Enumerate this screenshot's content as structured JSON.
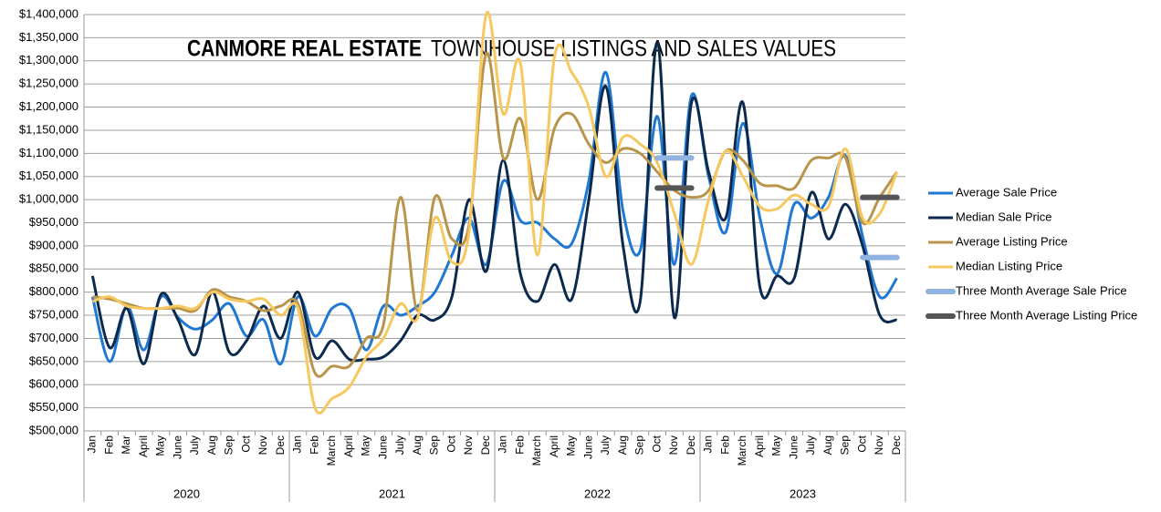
{
  "chart_data": {
    "type": "line",
    "title": "CANMORE REAL ESTATE",
    "subtitle": "TOWNHOUSE LISTINGS AND SALES VALUES",
    "categories": [
      "Jan",
      "Feb",
      "Mar",
      "April",
      "May",
      "June",
      "July",
      "Aug",
      "Sep",
      "Oct",
      "Nov",
      "Dec",
      "Jan",
      "Feb",
      "March",
      "April",
      "May",
      "June",
      "July",
      "Aug",
      "Sep",
      "Oct",
      "Nov",
      "Dec",
      "Jan",
      "Feb",
      "March",
      "April",
      "May",
      "June",
      "July",
      "Aug",
      "Sep",
      "Oct",
      "Nov",
      "Dec",
      "Jan",
      "Feb",
      "March",
      "April",
      "May",
      "June",
      "July",
      "Aug",
      "Sep",
      "Oct",
      "Nov",
      "Dec"
    ],
    "year_groups": [
      "2020",
      "2021",
      "2022",
      "2023"
    ],
    "ylim": [
      500000,
      1400000
    ],
    "yticks": [
      {
        "value": 500000,
        "label": "$500,000"
      },
      {
        "value": 550000,
        "label": "$550,000"
      },
      {
        "value": 600000,
        "label": "$600,000"
      },
      {
        "value": 650000,
        "label": "$650,000"
      },
      {
        "value": 700000,
        "label": "$700,000"
      },
      {
        "value": 750000,
        "label": "$750,000"
      },
      {
        "value": 800000,
        "label": "$800,000"
      },
      {
        "value": 850000,
        "label": "$850,000"
      },
      {
        "value": 900000,
        "label": "$900,000"
      },
      {
        "value": 950000,
        "label": "$950,000"
      },
      {
        "value": 1000000,
        "label": "$1,000,000"
      },
      {
        "value": 1050000,
        "label": "$1,050,000"
      },
      {
        "value": 1100000,
        "label": "$1,100,000"
      },
      {
        "value": 1150000,
        "label": "$1,150,000"
      },
      {
        "value": 1200000,
        "label": "$1,200,000"
      },
      {
        "value": 1250000,
        "label": "$1,250,000"
      },
      {
        "value": 1300000,
        "label": "$1,300,000"
      },
      {
        "value": 1350000,
        "label": "$1,350,000"
      },
      {
        "value": 1400000,
        "label": "$1,400,000"
      }
    ],
    "grid": true,
    "legend": "right",
    "series": [
      {
        "name": "Average Sale Price",
        "color": "#1f78d1",
        "smooth": true,
        "values": [
          790000,
          650000,
          770000,
          675000,
          790000,
          745000,
          720000,
          740000,
          775000,
          705000,
          740000,
          645000,
          790000,
          705000,
          765000,
          765000,
          675000,
          770000,
          750000,
          770000,
          800000,
          880000,
          960000,
          860000,
          1040000,
          955000,
          950000,
          915000,
          905000,
          1040000,
          1275000,
          975000,
          890000,
          1180000,
          860000,
          1225000,
          1050000,
          930000,
          1165000,
          960000,
          840000,
          990000,
          960000,
          1005000,
          1095000,
          920000,
          790000,
          830000
        ]
      },
      {
        "name": "Median Sale Price",
        "color": "#0c2a4d",
        "smooth": true,
        "values": [
          835000,
          680000,
          765000,
          645000,
          795000,
          740000,
          665000,
          800000,
          670000,
          695000,
          770000,
          700000,
          800000,
          660000,
          695000,
          655000,
          655000,
          660000,
          695000,
          750000,
          740000,
          790000,
          1000000,
          845000,
          1085000,
          840000,
          780000,
          860000,
          785000,
          1000000,
          1245000,
          900000,
          780000,
          1340000,
          745000,
          1210000,
          1060000,
          960000,
          1210000,
          810000,
          835000,
          830000,
          1015000,
          915000,
          990000,
          900000,
          750000,
          740000
        ]
      },
      {
        "name": "Average Listing Price",
        "color": "#b8954b",
        "smooth": true,
        "values": [
          790000,
          785000,
          775000,
          765000,
          765000,
          765000,
          760000,
          805000,
          790000,
          780000,
          760000,
          770000,
          775000,
          625000,
          640000,
          640000,
          700000,
          730000,
          1005000,
          760000,
          1005000,
          915000,
          945000,
          1315000,
          1090000,
          1175000,
          1000000,
          1155000,
          1185000,
          1120000,
          1080000,
          1110000,
          1100000,
          1060000,
          1020000,
          1005000,
          1020000,
          1105000,
          1085000,
          1035000,
          1030000,
          1025000,
          1085000,
          1090000,
          1090000,
          950000,
          1005000,
          1060000
        ]
      },
      {
        "name": "Median Listing Price",
        "color": "#f6c85f",
        "smooth": true,
        "values": [
          780000,
          790000,
          770000,
          765000,
          765000,
          770000,
          765000,
          800000,
          785000,
          780000,
          785000,
          750000,
          765000,
          550000,
          570000,
          595000,
          660000,
          700000,
          775000,
          745000,
          960000,
          865000,
          930000,
          1400000,
          1185000,
          1295000,
          880000,
          1310000,
          1275000,
          1200000,
          1050000,
          1135000,
          1120000,
          1080000,
          970000,
          860000,
          1000000,
          1105000,
          1050000,
          985000,
          980000,
          1010000,
          990000,
          985000,
          1110000,
          960000,
          970000,
          1060000
        ]
      },
      {
        "name": "Three Month Average Sale Price",
        "color": "#91b3df",
        "smooth": false,
        "values": [
          null,
          null,
          null,
          null,
          null,
          null,
          null,
          null,
          null,
          null,
          null,
          null,
          null,
          null,
          null,
          null,
          null,
          null,
          null,
          null,
          null,
          null,
          null,
          null,
          null,
          null,
          null,
          null,
          null,
          null,
          null,
          null,
          null,
          1090000,
          1090000,
          1090000,
          null,
          null,
          null,
          null,
          null,
          null,
          null,
          null,
          null,
          875000,
          875000,
          875000
        ]
      },
      {
        "name": "Three Month Average Listing Price",
        "color": "#555555",
        "smooth": false,
        "values": [
          null,
          null,
          null,
          null,
          null,
          null,
          null,
          null,
          null,
          null,
          null,
          null,
          null,
          null,
          null,
          null,
          null,
          null,
          null,
          null,
          null,
          null,
          null,
          null,
          null,
          null,
          null,
          null,
          null,
          null,
          null,
          null,
          null,
          1025000,
          1025000,
          1025000,
          null,
          null,
          null,
          null,
          null,
          null,
          null,
          null,
          null,
          1005000,
          1005000,
          1005000
        ]
      }
    ]
  }
}
